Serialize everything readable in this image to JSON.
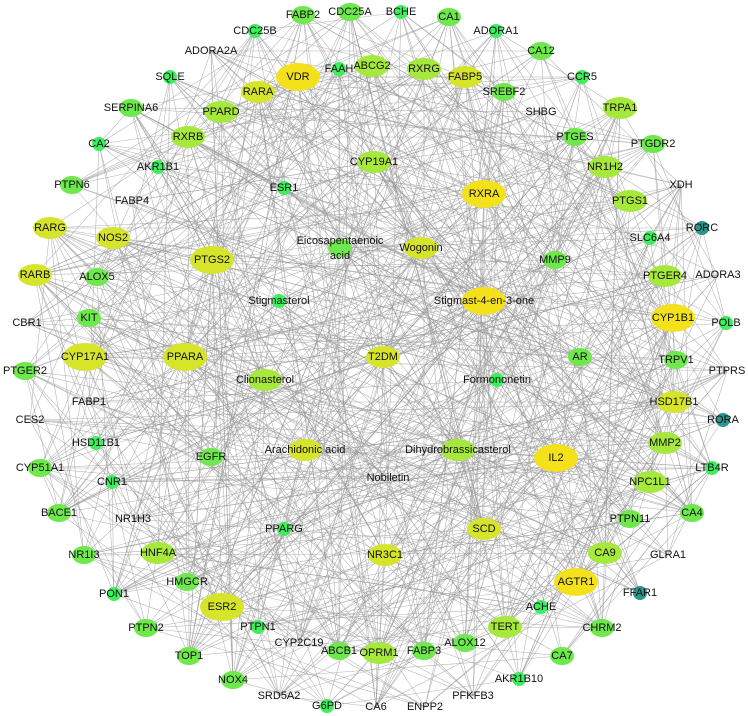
{
  "palette": {
    "yellow": "#f3e11c",
    "yellow_green": "#d6e52a",
    "light_green": "#a6e83c",
    "green": "#6ee84c",
    "bright_green": "#3cef5c",
    "teal": "#2a958c",
    "none": "none",
    "edge": "#9a9a9a"
  },
  "nodes": [
    {
      "label": "FABP2",
      "color": "green"
    },
    {
      "label": "CDC25A",
      "color": "green"
    },
    {
      "label": "BCHE",
      "color": "bright_green"
    },
    {
      "label": "CA1",
      "color": "green"
    },
    {
      "label": "ADORA1",
      "color": "bright_green"
    },
    {
      "label": "CDC25B",
      "color": "bright_green"
    },
    {
      "label": "ADORA2A",
      "color": "none"
    },
    {
      "label": "CA12",
      "color": "green"
    },
    {
      "label": "FAAH",
      "color": "bright_green"
    },
    {
      "label": "ABCG2",
      "color": "light_green"
    },
    {
      "label": "RXRG",
      "color": "light_green"
    },
    {
      "label": "FABP5",
      "color": "yellow_green"
    },
    {
      "label": "VDR",
      "color": "yellow"
    },
    {
      "label": "RARA",
      "color": "yellow_green"
    },
    {
      "label": "SQLE",
      "color": "bright_green"
    },
    {
      "label": "CCR5",
      "color": "bright_green"
    },
    {
      "label": "SREBF2",
      "color": "green"
    },
    {
      "label": "SERPINA6",
      "color": "green"
    },
    {
      "label": "PPARD",
      "color": "light_green"
    },
    {
      "label": "TRPA1",
      "color": "light_green"
    },
    {
      "label": "SHBG",
      "color": "none"
    },
    {
      "label": "RXRB",
      "color": "light_green"
    },
    {
      "label": "PTGES",
      "color": "green"
    },
    {
      "label": "CA2",
      "color": "bright_green"
    },
    {
      "label": "PTGDR2",
      "color": "green"
    },
    {
      "label": "AKR1B1",
      "color": "bright_green"
    },
    {
      "label": "CYP19A1",
      "color": "light_green"
    },
    {
      "label": "NR1H2",
      "color": "light_green"
    },
    {
      "label": "PTPN6",
      "color": "green"
    },
    {
      "label": "ESR1",
      "color": "bright_green"
    },
    {
      "label": "XDH",
      "color": "none"
    },
    {
      "label": "RXRA",
      "color": "yellow"
    },
    {
      "label": "PTGS1",
      "color": "light_green"
    },
    {
      "label": "FABP4",
      "color": "none"
    },
    {
      "label": "RARG",
      "color": "yellow_green"
    },
    {
      "label": "NOS2",
      "color": "yellow_green"
    },
    {
      "label": "Eicosapentaenoic",
      "label2": "acid",
      "color": "green"
    },
    {
      "label": "Wogonin",
      "color": "yellow_green"
    },
    {
      "label": "RORC",
      "color": "teal"
    },
    {
      "label": "SLC6A4",
      "color": "bright_green"
    },
    {
      "label": "PTGS2",
      "color": "yellow_green"
    },
    {
      "label": "MMP9",
      "color": "green"
    },
    {
      "label": "ADORA3",
      "color": "none"
    },
    {
      "label": "PTGER4",
      "color": "light_green"
    },
    {
      "label": "RARB",
      "color": "yellow_green"
    },
    {
      "label": "ALOX5",
      "color": "green"
    },
    {
      "label": "Stigmasterol",
      "color": "bright_green"
    },
    {
      "label": "Stigmast-4-en-3-one",
      "color": "yellow"
    },
    {
      "label": "CYP1B1",
      "color": "yellow"
    },
    {
      "label": "POLB",
      "color": "bright_green"
    },
    {
      "label": "CBR1",
      "color": "none"
    },
    {
      "label": "KIT",
      "color": "green"
    },
    {
      "label": "CYP17A1",
      "color": "yellow_green"
    },
    {
      "label": "PPARA",
      "color": "yellow_green"
    },
    {
      "label": "T2DM",
      "color": "yellow_green"
    },
    {
      "label": "AR",
      "color": "green"
    },
    {
      "label": "TRPV1",
      "color": "green"
    },
    {
      "label": "PTGER2",
      "color": "green"
    },
    {
      "label": "Clionasterol",
      "color": "light_green"
    },
    {
      "label": "Formononetin",
      "color": "bright_green"
    },
    {
      "label": "PTPRS",
      "color": "none"
    },
    {
      "label": "FABP1",
      "color": "none"
    },
    {
      "label": "HSD17B1",
      "color": "yellow_green"
    },
    {
      "label": "CES2",
      "color": "none"
    },
    {
      "label": "RORA",
      "color": "teal"
    },
    {
      "label": "HSD11B1",
      "color": "bright_green"
    },
    {
      "label": "EGFR",
      "color": "green"
    },
    {
      "label": "Arachidonic acid",
      "color": "yellow_green"
    },
    {
      "label": "Dihydrobrassicasterol",
      "color": "light_green"
    },
    {
      "label": "IL2",
      "color": "yellow"
    },
    {
      "label": "MMP2",
      "color": "light_green"
    },
    {
      "label": "CYP51A1",
      "color": "green"
    },
    {
      "label": "CNR1",
      "color": "bright_green"
    },
    {
      "label": "Nobiletin",
      "color": "none"
    },
    {
      "label": "NPC1L1",
      "color": "light_green"
    },
    {
      "label": "LTB4R",
      "color": "bright_green"
    },
    {
      "label": "BACE1",
      "color": "green"
    },
    {
      "label": "NR1H3",
      "color": "none"
    },
    {
      "label": "PPARG",
      "color": "bright_green"
    },
    {
      "label": "PTPN11",
      "color": "green"
    },
    {
      "label": "CA4",
      "color": "green"
    },
    {
      "label": "NR1I3",
      "color": "green"
    },
    {
      "label": "HNF4A",
      "color": "light_green"
    },
    {
      "label": "SCD",
      "color": "yellow_green"
    },
    {
      "label": "NR3C1",
      "color": "yellow_green"
    },
    {
      "label": "CA9",
      "color": "light_green"
    },
    {
      "label": "GLRA1",
      "color": "none"
    },
    {
      "label": "HMGCR",
      "color": "green"
    },
    {
      "label": "AGTR1",
      "color": "yellow"
    },
    {
      "label": "FFAR1",
      "color": "teal"
    },
    {
      "label": "PON1",
      "color": "bright_green"
    },
    {
      "label": "ESR2",
      "color": "yellow_green"
    },
    {
      "label": "ACHE",
      "color": "bright_green"
    },
    {
      "label": "PTPN1",
      "color": "bright_green"
    },
    {
      "label": "PTPN2",
      "color": "green"
    },
    {
      "label": "CHRM2",
      "color": "green"
    },
    {
      "label": "TERT",
      "color": "light_green"
    },
    {
      "label": "CYP2C19",
      "color": "none"
    },
    {
      "label": "ABCB1",
      "color": "green"
    },
    {
      "label": "OPRM1",
      "color": "light_green"
    },
    {
      "label": "FABP3",
      "color": "green"
    },
    {
      "label": "ALOX12",
      "color": "green"
    },
    {
      "label": "TOP1",
      "color": "green"
    },
    {
      "label": "CA7",
      "color": "green"
    },
    {
      "label": "NOX4",
      "color": "green"
    },
    {
      "label": "AKR1B10",
      "color": "bright_green"
    },
    {
      "label": "SRD5A2",
      "color": "none"
    },
    {
      "label": "G6PD",
      "color": "bright_green"
    },
    {
      "label": "PFKFB3",
      "color": "none"
    },
    {
      "label": "ENPP2",
      "color": "none"
    },
    {
      "label": "CA6",
      "color": "none"
    }
  ]
}
